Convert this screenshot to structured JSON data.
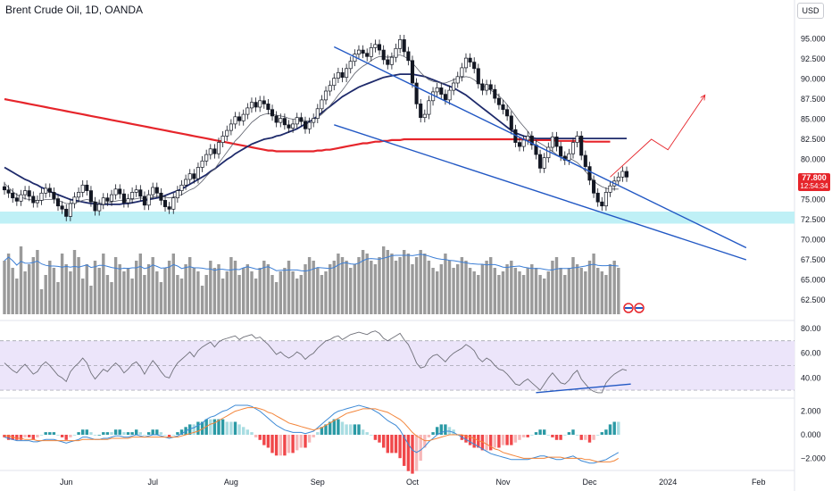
{
  "title": "Brent Crude Oil, 1D, OANDA",
  "currency": "USD",
  "last_price": "77.800",
  "countdown": "12:54:34",
  "colors": {
    "up": "#ffffff",
    "down": "#131722",
    "ma200": "#e6252b",
    "ma50": "#1e2a6b",
    "ma20": "#5d606b",
    "trend": "#2258c4",
    "zone": "#bff0f6",
    "volume": "#9a9a9a",
    "vol_ma": "#3d7fd6",
    "rsi_band": "#ece5fa",
    "rsi_line": "#6f7079",
    "macd_line": "#3d8ad6",
    "signal": "#f3853a",
    "hist_pos": "#2b9aa5",
    "hist_neg": "#f0474a",
    "projection": "#e6252b"
  },
  "chart_data": [
    {
      "type": "candlestick",
      "panel": "price",
      "ylim": [
        61.5,
        96.5
      ],
      "y_ticks": [
        "95.000",
        "92.500",
        "90.000",
        "87.500",
        "85.000",
        "82.500",
        "80.000",
        "77.500",
        "75.000",
        "72.500",
        "70.000",
        "67.500",
        "65.000",
        "62.500"
      ],
      "x_ticks": [
        "Jun",
        "Jul",
        "Aug",
        "Sep",
        "Oct",
        "Nov",
        "Dec",
        "2024",
        "Feb"
      ],
      "support_zone": [
        72.0,
        73.5
      ],
      "trendline_upper": [
        [
          80,
          94.0
        ],
        [
          180,
          69.0
        ]
      ],
      "trendline_lower": [
        [
          80,
          84.3
        ],
        [
          180,
          67.5
        ]
      ],
      "closes": [
        76.2,
        75.8,
        75.2,
        74.8,
        75.6,
        76.1,
        75.4,
        74.6,
        74.9,
        75.8,
        76.4,
        75.9,
        75.1,
        74.2,
        73.8,
        72.9,
        74.5,
        75.3,
        75.9,
        76.8,
        76.1,
        74.7,
        73.6,
        74.4,
        75.2,
        74.8,
        75.6,
        76.3,
        75.7,
        74.6,
        75.1,
        75.9,
        76.2,
        75.4,
        74.3,
        75.6,
        76.5,
        75.8,
        74.9,
        74.1,
        73.8,
        75.2,
        76.1,
        76.8,
        77.5,
        78.2,
        77.6,
        79.0,
        79.8,
        80.6,
        81.3,
        80.7,
        82.1,
        82.9,
        83.6,
        84.4,
        85.3,
        84.8,
        85.6,
        86.4,
        87.1,
        86.5,
        87.3,
        86.9,
        86.2,
        85.4,
        84.6,
        85.1,
        84.3,
        83.9,
        84.4,
        85.2,
        84.7,
        83.8,
        84.6,
        85.1,
        86.3,
        87.4,
        88.5,
        89.2,
        90.1,
        90.8,
        90.2,
        91.3,
        92.2,
        93.1,
        93.6,
        93.2,
        92.8,
        93.9,
        94.3,
        93.6,
        92.4,
        91.8,
        92.7,
        93.8,
        94.9,
        93.4,
        92.3,
        89.5,
        86.9,
        85.2,
        85.6,
        87.3,
        88.4,
        88.9,
        88.1,
        87.4,
        88.6,
        89.5,
        90.3,
        91.4,
        92.6,
        92.1,
        91.3,
        89.4,
        88.6,
        89.3,
        88.7,
        87.6,
        86.8,
        86.2,
        85.4,
        83.7,
        82.1,
        81.6,
        82.4,
        82.9,
        81.8,
        80.6,
        78.9,
        80.2,
        81.5,
        82.8,
        81.6,
        80.4,
        79.9,
        80.7,
        82.1,
        82.9,
        80.5,
        79.1,
        77.4,
        75.8,
        74.7,
        74.2,
        75.9,
        76.7,
        77.3,
        77.8,
        78.5,
        77.8
      ],
      "ma20": [
        77.0,
        76.5,
        76.0,
        75.6,
        75.3,
        75.1,
        75.0,
        74.9,
        74.9,
        74.9,
        75.0,
        75.0,
        75.0,
        74.9,
        74.7,
        74.5,
        74.5,
        74.6,
        74.7,
        74.9,
        75.0,
        74.9,
        74.7,
        74.6,
        74.6,
        74.6,
        74.7,
        74.8,
        74.9,
        74.9,
        74.9,
        75.0,
        75.1,
        75.2,
        75.1,
        75.1,
        75.3,
        75.4,
        75.4,
        75.3,
        75.2,
        75.3,
        75.4,
        75.6,
        75.9,
        76.2,
        76.4,
        76.8,
        77.3,
        77.9,
        78.4,
        78.8,
        79.5,
        80.2,
        80.9,
        81.6,
        82.3,
        82.8,
        83.4,
        84.0,
        84.6,
        85.0,
        85.4,
        85.6,
        85.7,
        85.6,
        85.5,
        85.4,
        85.3,
        85.1,
        85.0,
        85.0,
        84.9,
        84.8,
        84.8,
        84.9,
        85.2,
        85.6,
        86.1,
        86.7,
        87.3,
        88.0,
        88.6,
        89.3,
        90.0,
        90.7,
        91.2,
        91.6,
        91.9,
        92.3,
        92.6,
        92.8,
        92.8,
        92.7,
        92.8,
        92.9,
        93.0,
        92.8,
        92.5,
        92.0,
        91.4,
        90.8,
        90.3,
        89.9,
        89.7,
        89.6,
        89.5,
        89.5,
        89.7,
        89.9,
        90.1,
        90.2,
        90.3,
        90.2,
        89.9,
        89.5,
        89.2,
        88.9,
        88.6,
        88.3,
        87.9,
        87.4,
        86.8,
        86.1,
        85.4,
        84.7,
        84.1,
        83.5,
        82.8,
        82.3,
        82.0,
        81.7,
        81.3,
        81.0,
        80.6,
        80.3,
        80.2,
        80.2,
        79.9,
        79.6,
        79.1,
        78.5,
        77.9,
        77.3,
        76.9,
        76.6,
        76.4,
        76.3,
        76.3,
        76.3
      ],
      "ma50": [
        79.0,
        78.7,
        78.4,
        78.1,
        77.8,
        77.5,
        77.3,
        77.0,
        76.8,
        76.5,
        76.3,
        76.0,
        75.8,
        75.6,
        75.4,
        75.2,
        75.0,
        74.9,
        74.8,
        74.7,
        74.6,
        74.5,
        74.5,
        74.4,
        74.4,
        74.4,
        74.4,
        74.4,
        74.4,
        74.5,
        74.5,
        74.6,
        74.7,
        74.8,
        74.9,
        75.0,
        75.1,
        75.2,
        75.3,
        75.5,
        75.7,
        75.9,
        76.1,
        76.3,
        76.6,
        76.9,
        77.2,
        77.5,
        77.8,
        78.1,
        78.5,
        78.8,
        79.2,
        79.6,
        80.0,
        80.3,
        80.7,
        81.0,
        81.3,
        81.6,
        81.9,
        82.1,
        82.3,
        82.5,
        82.6,
        82.7,
        82.9,
        83.0,
        83.2,
        83.4,
        83.6,
        83.8,
        84.1,
        84.4,
        84.7,
        85.0,
        85.4,
        85.8,
        86.2,
        86.6,
        87.0,
        87.4,
        87.8,
        88.1,
        88.4,
        88.7,
        89.0,
        89.2,
        89.4,
        89.6,
        89.8,
        90.0,
        90.2,
        90.3,
        90.4,
        90.5,
        90.6,
        90.6,
        90.6,
        90.6,
        90.5,
        90.4,
        90.3,
        90.1,
        89.9,
        89.7,
        89.5,
        89.3,
        89.1,
        88.9,
        88.6,
        88.3,
        88.0,
        87.6,
        87.2,
        86.8,
        86.4,
        86.0,
        85.6,
        85.2,
        84.8,
        84.4,
        84.0,
        83.6,
        83.3,
        83.1,
        82.9,
        82.8,
        82.7,
        82.6,
        82.6,
        82.6,
        82.6,
        82.6,
        82.6,
        82.6,
        82.6,
        82.6,
        82.6,
        82.6,
        82.6,
        82.6,
        82.6,
        82.6,
        82.6,
        82.6,
        82.6,
        82.6,
        82.6,
        82.6,
        82.6,
        82.6
      ],
      "ma200": [
        87.5,
        87.4,
        87.3,
        87.2,
        87.1,
        87.0,
        86.9,
        86.8,
        86.7,
        86.6,
        86.5,
        86.4,
        86.3,
        86.2,
        86.1,
        86.0,
        85.9,
        85.8,
        85.7,
        85.6,
        85.5,
        85.4,
        85.3,
        85.2,
        85.1,
        85.0,
        84.9,
        84.8,
        84.7,
        84.6,
        84.5,
        84.4,
        84.3,
        84.2,
        84.1,
        84.0,
        83.9,
        83.8,
        83.7,
        83.6,
        83.5,
        83.4,
        83.3,
        83.2,
        83.1,
        83.0,
        82.9,
        82.8,
        82.7,
        82.6,
        82.5,
        82.4,
        82.3,
        82.2,
        82.1,
        82.0,
        81.9,
        81.8,
        81.7,
        81.6,
        81.5,
        81.4,
        81.3,
        81.2,
        81.1,
        81.1,
        81.0,
        81.0,
        81.0,
        81.0,
        81.0,
        81.0,
        81.0,
        81.0,
        81.0,
        81.0,
        81.1,
        81.1,
        81.2,
        81.2,
        81.3,
        81.4,
        81.5,
        81.6,
        81.7,
        81.8,
        81.9,
        82.0,
        82.0,
        82.1,
        82.2,
        82.2,
        82.3,
        82.3,
        82.4,
        82.4,
        82.4,
        82.5,
        82.5,
        82.5,
        82.5,
        82.5,
        82.5,
        82.5,
        82.5,
        82.5,
        82.5,
        82.5,
        82.5,
        82.5,
        82.5,
        82.5,
        82.5,
        82.5,
        82.5,
        82.5,
        82.5,
        82.5,
        82.5,
        82.5,
        82.5,
        82.5,
        82.5,
        82.5,
        82.5,
        82.5,
        82.5,
        82.4,
        82.4,
        82.4,
        82.4,
        82.4,
        82.4,
        82.4,
        82.3,
        82.3,
        82.3,
        82.3,
        82.3,
        82.3,
        82.3,
        82.2,
        82.2,
        82.2,
        82.2,
        82.2,
        82.2,
        82.2
      ]
    },
    {
      "type": "bar",
      "panel": "volume",
      "values": [
        70,
        72,
        68,
        65,
        74,
        67,
        69,
        71,
        73,
        62,
        66,
        70,
        68,
        64,
        72,
        69,
        67,
        73,
        71,
        65,
        69,
        63,
        70,
        68,
        72,
        66,
        64,
        71,
        69,
        67,
        68,
        65,
        70,
        72,
        66,
        69,
        71,
        67,
        64,
        68,
        70,
        72,
        66,
        65,
        69,
        71,
        68,
        67,
        63,
        66,
        70,
        68,
        69,
        65,
        67,
        71,
        70,
        66,
        68,
        69,
        67,
        65,
        68,
        70,
        69,
        66,
        64,
        67,
        68,
        70,
        67,
        65,
        66,
        69,
        71,
        70,
        68,
        66,
        67,
        69,
        70,
        72,
        71,
        70,
        68,
        69,
        71,
        73,
        72,
        70,
        69,
        71,
        74,
        73,
        72,
        70,
        71,
        73,
        72,
        69,
        71,
        73,
        72,
        70,
        68,
        67,
        69,
        72,
        70,
        68,
        69,
        71,
        70,
        68,
        67,
        66,
        69,
        70,
        71,
        68,
        66,
        67,
        69,
        70,
        68,
        67,
        66,
        68,
        69,
        68,
        66,
        65,
        67,
        70,
        71,
        68,
        66,
        68,
        71,
        69,
        68,
        67,
        70,
        72,
        68,
        67,
        66,
        69,
        70,
        68
      ]
    },
    {
      "type": "line",
      "panel": "rsi",
      "ylim": [
        25,
        85
      ],
      "y_ticks": [
        "80.00",
        "60.00",
        "40.00"
      ],
      "bands": [
        30,
        50,
        70
      ],
      "values": [
        52,
        49,
        46,
        44,
        48,
        51,
        47,
        43,
        45,
        50,
        53,
        50,
        46,
        42,
        40,
        37,
        45,
        49,
        52,
        56,
        52,
        44,
        39,
        43,
        47,
        45,
        49,
        52,
        49,
        44,
        47,
        51,
        53,
        49,
        43,
        49,
        54,
        50,
        45,
        41,
        40,
        47,
        52,
        55,
        58,
        61,
        57,
        62,
        65,
        67,
        69,
        65,
        69,
        71,
        72,
        73,
        74,
        71,
        73,
        74,
        75,
        72,
        73,
        70,
        67,
        63,
        59,
        61,
        58,
        56,
        58,
        61,
        59,
        55,
        58,
        60,
        64,
        67,
        70,
        71,
        73,
        74,
        71,
        73,
        75,
        76,
        77,
        76,
        75,
        77,
        78,
        76,
        72,
        70,
        72,
        74,
        76,
        71,
        67,
        60,
        52,
        48,
        49,
        55,
        58,
        59,
        56,
        53,
        57,
        60,
        62,
        64,
        67,
        65,
        62,
        56,
        53,
        56,
        54,
        50,
        47,
        46,
        43,
        39,
        35,
        34,
        37,
        39,
        36,
        33,
        30,
        35,
        40,
        44,
        40,
        36,
        35,
        38,
        43,
        46,
        39,
        35,
        31,
        29,
        28,
        28,
        36,
        40,
        43,
        45,
        47,
        46
      ]
    },
    {
      "type": "line",
      "panel": "macd",
      "ylim": [
        -2.8,
        2.8
      ],
      "y_ticks": [
        "2.000",
        "0.000",
        "−2.000"
      ],
      "macd": [
        -0.2,
        -0.3,
        -0.4,
        -0.5,
        -0.5,
        -0.5,
        -0.5,
        -0.6,
        -0.6,
        -0.5,
        -0.4,
        -0.4,
        -0.4,
        -0.5,
        -0.6,
        -0.7,
        -0.6,
        -0.5,
        -0.4,
        -0.2,
        -0.2,
        -0.3,
        -0.4,
        -0.4,
        -0.3,
        -0.3,
        -0.2,
        -0.1,
        -0.1,
        -0.2,
        -0.2,
        -0.1,
        0.0,
        -0.1,
        -0.2,
        -0.1,
        0.0,
        0.0,
        -0.1,
        -0.2,
        -0.3,
        -0.2,
        -0.1,
        0.1,
        0.3,
        0.5,
        0.6,
        0.8,
        1.0,
        1.3,
        1.5,
        1.6,
        1.8,
        2.0,
        2.1,
        2.3,
        2.5,
        2.5,
        2.5,
        2.5,
        2.4,
        2.2,
        2.0,
        1.7,
        1.4,
        1.1,
        0.8,
        0.6,
        0.4,
        0.3,
        0.2,
        0.2,
        0.2,
        0.1,
        0.2,
        0.3,
        0.6,
        0.9,
        1.2,
        1.5,
        1.8,
        2.0,
        2.1,
        2.2,
        2.3,
        2.4,
        2.5,
        2.4,
        2.3,
        2.2,
        2.0,
        1.8,
        1.5,
        1.2,
        1.0,
        0.8,
        0.4,
        -0.2,
        -0.8,
        -1.3,
        -1.5,
        -1.3,
        -1.0,
        -0.6,
        -0.3,
        0.0,
        0.2,
        0.3,
        0.3,
        0.2,
        0.0,
        -0.2,
        -0.4,
        -0.6,
        -0.8,
        -1.0,
        -1.2,
        -1.4,
        -1.6,
        -1.7,
        -1.8,
        -1.9,
        -2.0,
        -2.1,
        -2.1,
        -2.1,
        -2.1,
        -2.1,
        -2.0,
        -1.9,
        -1.8,
        -1.8,
        -1.9,
        -2.0,
        -2.1,
        -2.1,
        -2.0,
        -1.9,
        -1.8,
        -2.0,
        -2.2,
        -2.3,
        -2.4,
        -2.4,
        -2.3,
        -2.2,
        -2.1,
        -1.9,
        -1.7,
        -1.5
      ],
      "signal": [
        -0.1,
        -0.1,
        -0.2,
        -0.3,
        -0.3,
        -0.4,
        -0.4,
        -0.4,
        -0.5,
        -0.5,
        -0.5,
        -0.5,
        -0.5,
        -0.5,
        -0.5,
        -0.5,
        -0.5,
        -0.5,
        -0.5,
        -0.4,
        -0.4,
        -0.4,
        -0.4,
        -0.4,
        -0.4,
        -0.4,
        -0.3,
        -0.3,
        -0.3,
        -0.3,
        -0.3,
        -0.2,
        -0.2,
        -0.2,
        -0.2,
        -0.2,
        -0.2,
        -0.2,
        -0.2,
        -0.2,
        -0.2,
        -0.2,
        -0.2,
        -0.1,
        0.0,
        0.1,
        0.2,
        0.3,
        0.5,
        0.7,
        0.9,
        1.0,
        1.2,
        1.4,
        1.6,
        1.8,
        2.0,
        2.1,
        2.2,
        2.3,
        2.3,
        2.3,
        2.2,
        2.1,
        1.9,
        1.8,
        1.6,
        1.4,
        1.2,
        1.0,
        0.9,
        0.8,
        0.7,
        0.6,
        0.5,
        0.4,
        0.5,
        0.6,
        0.8,
        1.0,
        1.2,
        1.4,
        1.6,
        1.8,
        1.9,
        2.0,
        2.1,
        2.2,
        2.2,
        2.2,
        2.2,
        2.1,
        2.0,
        1.9,
        1.7,
        1.5,
        1.3,
        1.0,
        0.6,
        0.2,
        -0.1,
        -0.3,
        -0.5,
        -0.5,
        -0.4,
        -0.3,
        -0.2,
        -0.1,
        0.0,
        0.0,
        0.0,
        0.0,
        -0.1,
        -0.2,
        -0.3,
        -0.5,
        -0.6,
        -0.8,
        -1.0,
        -1.2,
        -1.3,
        -1.5,
        -1.6,
        -1.7,
        -1.8,
        -1.9,
        -2.0,
        -2.0,
        -2.0,
        -2.0,
        -2.0,
        -2.0,
        -1.9,
        -1.9,
        -1.9,
        -1.9,
        -2.0,
        -2.0,
        -2.0,
        -2.0,
        -2.0,
        -2.1,
        -2.1,
        -2.2,
        -2.3,
        -2.3,
        -2.3,
        -2.3,
        -2.2,
        -2.0
      ]
    }
  ]
}
